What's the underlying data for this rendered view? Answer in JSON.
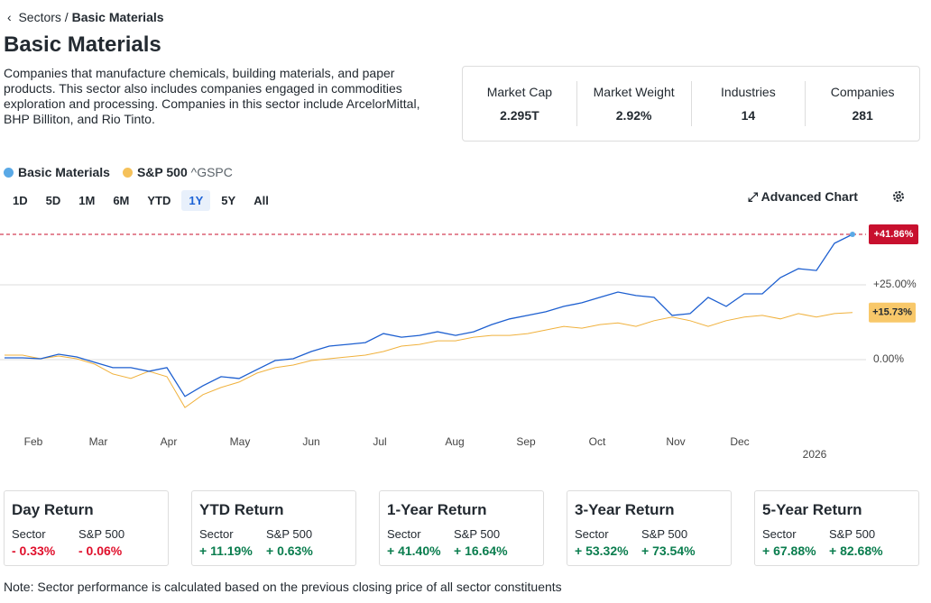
{
  "breadcrumb": {
    "parent": "Sectors",
    "current": "Basic Materials"
  },
  "title": "Basic Materials",
  "description": "Companies that manufacture chemicals, building materials, and paper products. This sector also includes companies engaged in commodities exploration and processing. Companies in this sector include ArcelorMittal, BHP Billiton, and Rio Tinto.",
  "stats": [
    {
      "label": "Market Cap",
      "value": "2.295T"
    },
    {
      "label": "Market Weight",
      "value": "2.92%"
    },
    {
      "label": "Industries",
      "value": "14"
    },
    {
      "label": "Companies",
      "value": "281"
    }
  ],
  "ticker": "^GSPC",
  "ranges": [
    "1D",
    "5D",
    "1M",
    "6M",
    "YTD",
    "1Y",
    "5Y",
    "All"
  ],
  "advanced_chart": "Advanced Chart",
  "chart_data": {
    "type": "line",
    "xtick_labels": [
      "Feb",
      "Mar",
      "Apr",
      "May",
      "Jun",
      "Jul",
      "Aug",
      "Sep",
      "Oct",
      "Nov",
      "Dec",
      "2026"
    ],
    "ylim": [
      -21,
      45
    ],
    "yticks": [
      {
        "value": 0,
        "label": "0.00%"
      },
      {
        "value": 25,
        "label": "+25.00%"
      }
    ],
    "grid": true,
    "series": [
      {
        "name": "Basic Materials",
        "color": "#1d5fd0",
        "legend_color": "#5aa9e6",
        "label_color": "#c8102e",
        "end_label": "+41.86%",
        "values": [
          0.6,
          0.6,
          0.3,
          1.8,
          0.9,
          -0.9,
          -2.7,
          -2.7,
          -3.9,
          -2.7,
          -12.3,
          -8.7,
          -5.7,
          -6.3,
          -3.3,
          -0.3,
          0.3,
          2.7,
          4.5,
          5.1,
          5.7,
          8.7,
          7.5,
          8.1,
          9.3,
          8.1,
          9.3,
          11.7,
          13.6,
          14.8,
          16.0,
          17.8,
          19.0,
          20.8,
          22.6,
          21.4,
          20.8,
          14.8,
          15.4,
          20.8,
          17.8,
          22.0,
          22.0,
          27.4,
          30.4,
          29.8,
          38.9,
          41.86
        ]
      },
      {
        "name": "S&P 500",
        "color": "#f0b13c",
        "legend_color": "#f5c15a",
        "label_color": "#f8c86a",
        "end_label": "+15.73%",
        "values": [
          1.5,
          1.5,
          0.3,
          1.2,
          0.3,
          -1.5,
          -4.8,
          -6.3,
          -3.9,
          -5.7,
          -16.0,
          -11.7,
          -9.3,
          -7.5,
          -4.5,
          -2.7,
          -1.8,
          -0.3,
          0.3,
          0.9,
          1.5,
          2.7,
          4.5,
          5.1,
          6.3,
          6.3,
          7.5,
          8.1,
          8.1,
          8.7,
          9.9,
          11.1,
          10.5,
          11.7,
          12.3,
          11.1,
          13.0,
          14.2,
          13.0,
          11.1,
          13.0,
          14.2,
          14.8,
          13.6,
          15.4,
          14.2,
          15.4,
          15.73
        ]
      }
    ]
  },
  "returns": [
    {
      "title": "Day Return",
      "sector_label": "Sector",
      "sp_label": "S&P 500",
      "sector": "- 0.33%",
      "sp": "- 0.06%"
    },
    {
      "title": "YTD Return",
      "sector_label": "Sector",
      "sp_label": "S&P 500",
      "sector": "+ 11.19%",
      "sp": "+ 0.63%"
    },
    {
      "title": "1-Year Return",
      "sector_label": "Sector",
      "sp_label": "S&P 500",
      "sector": "+ 41.40%",
      "sp": "+ 16.64%"
    },
    {
      "title": "3-Year Return",
      "sector_label": "Sector",
      "sp_label": "S&P 500",
      "sector": "+ 53.32%",
      "sp": "+ 73.54%"
    },
    {
      "title": "5-Year Return",
      "sector_label": "Sector",
      "sp_label": "S&P 500",
      "sector": "+ 67.88%",
      "sp": "+ 82.68%"
    }
  ],
  "note": "Note: Sector performance is calculated based on the previous closing price of all sector constituents"
}
